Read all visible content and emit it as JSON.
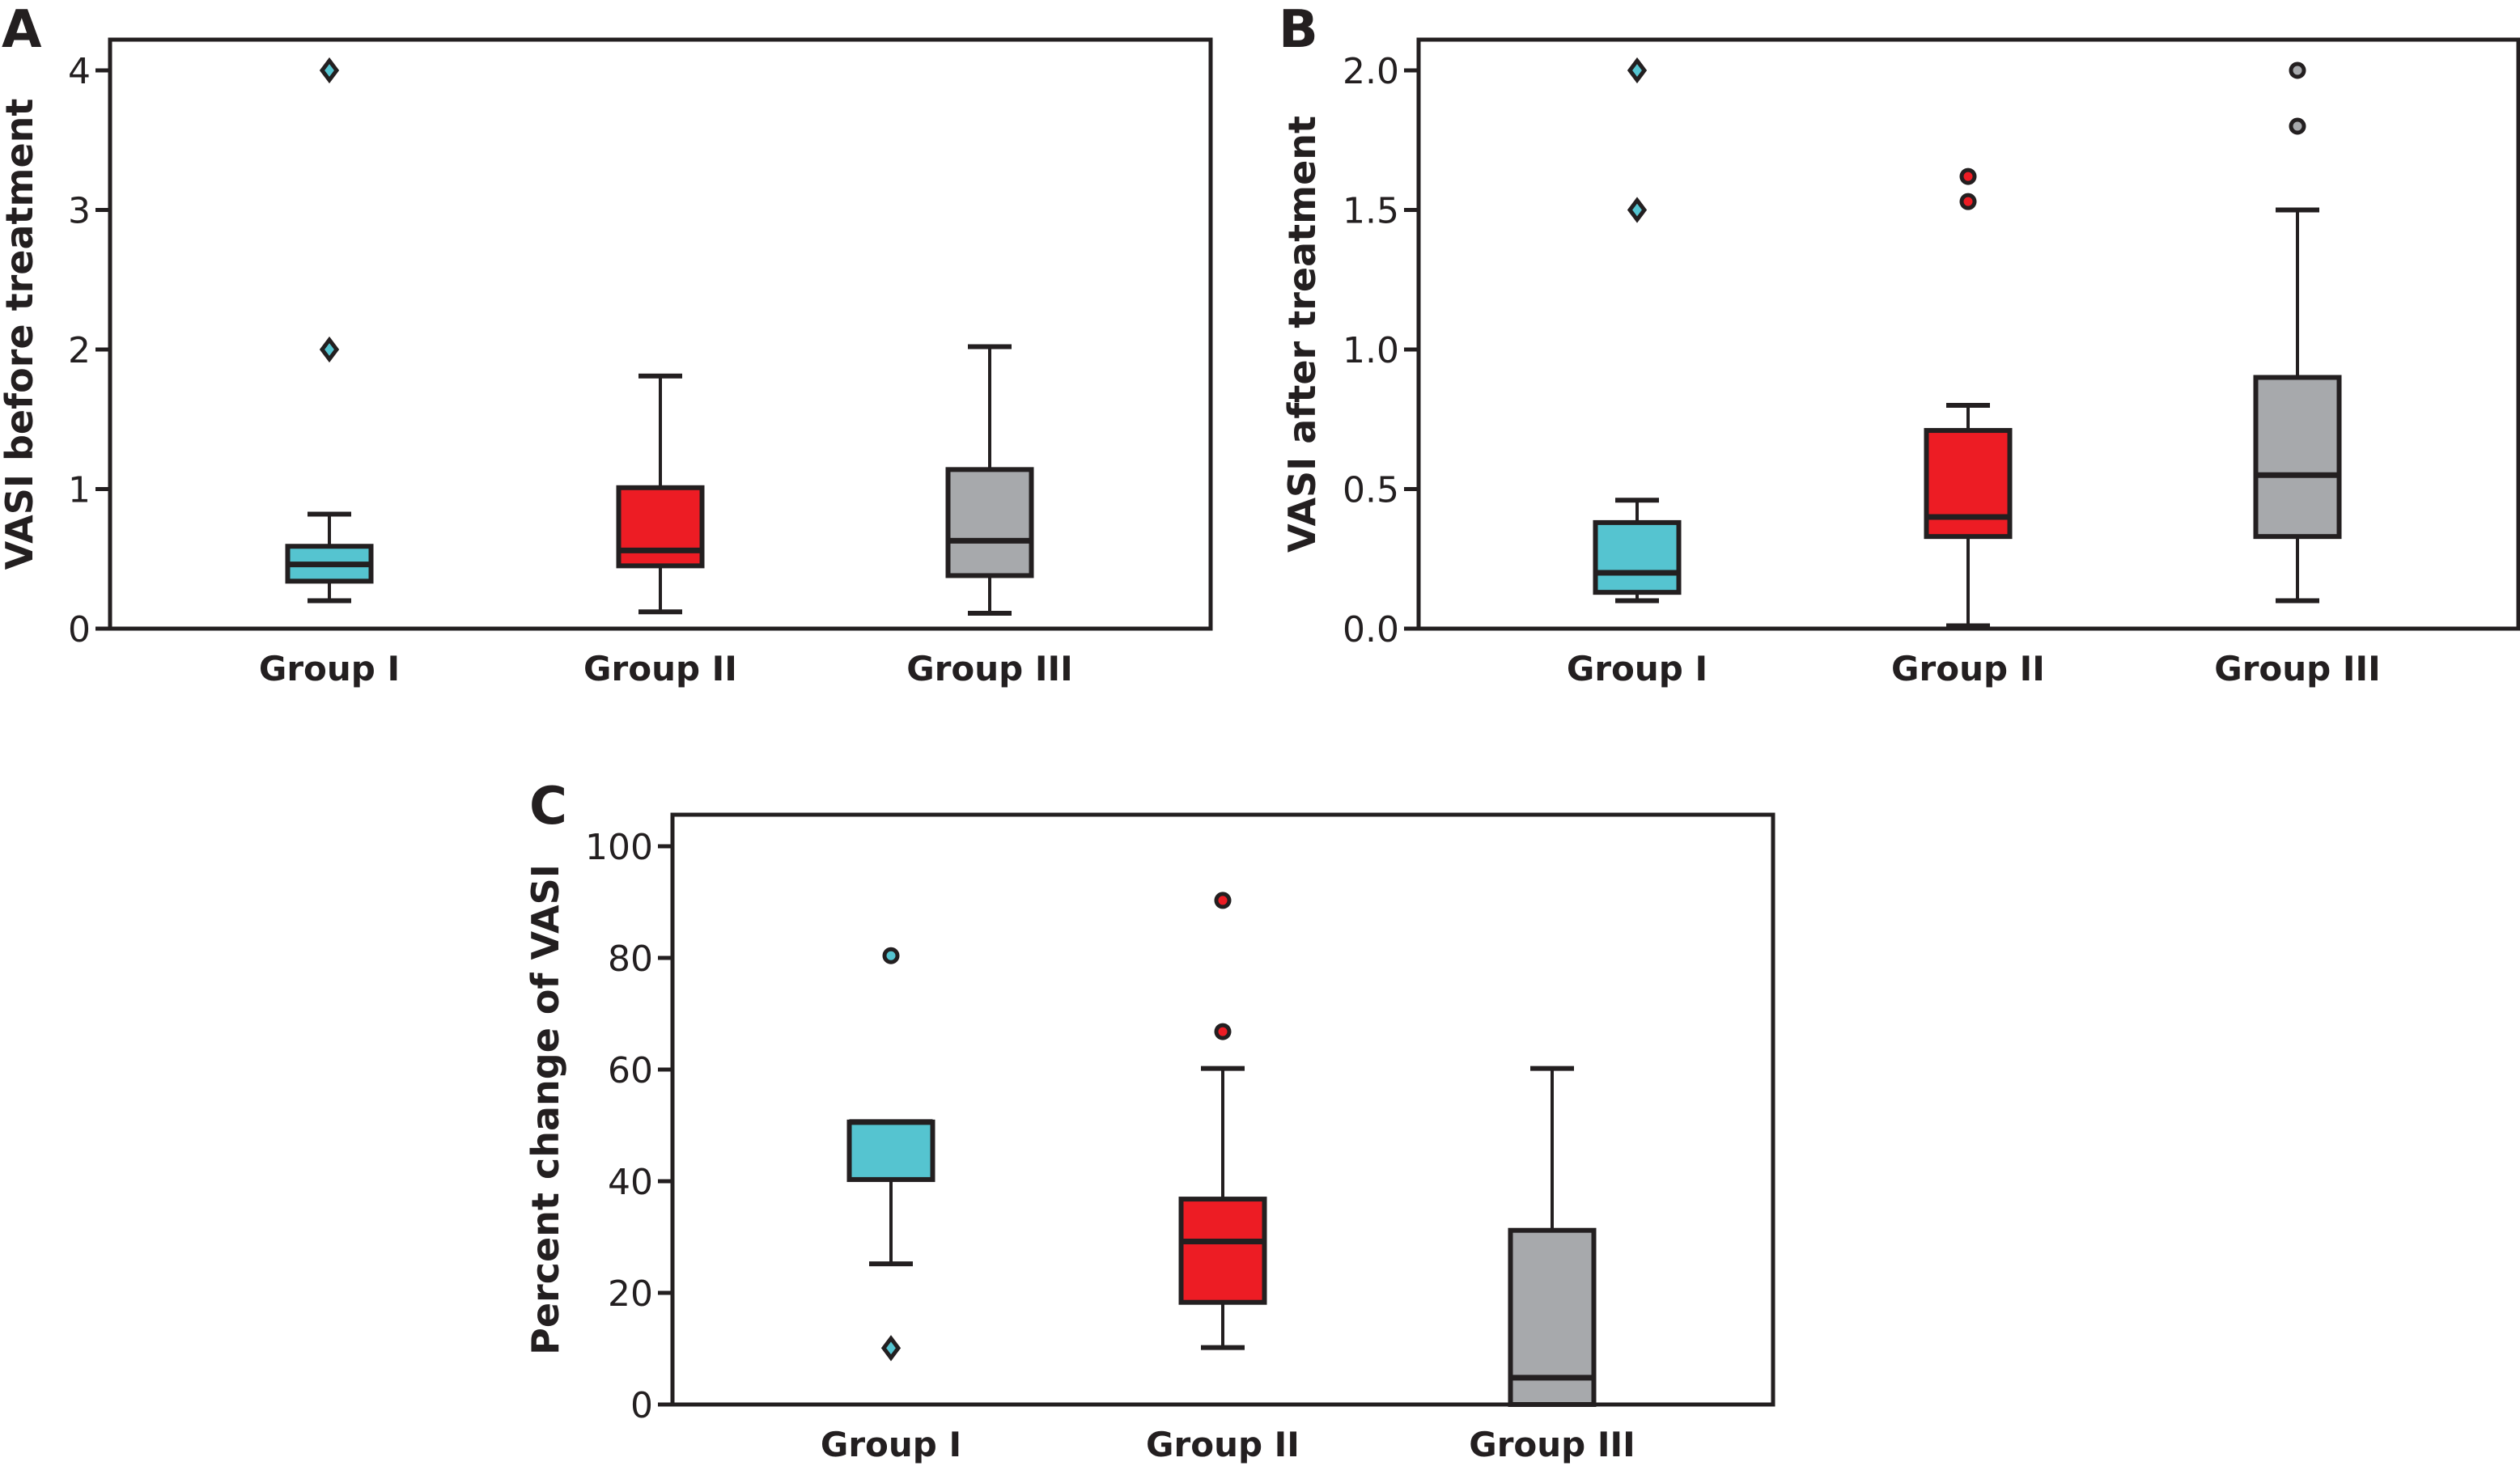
{
  "figure": {
    "colors": {
      "group_i": "#55c4d0",
      "group_ii": "#ed1c24",
      "group_iii": "#a7a9ac",
      "ink": "#231f20"
    }
  },
  "chart_data": [
    {
      "type": "box",
      "panel": "A",
      "title": "",
      "xlabel": "",
      "ylabel": "VASI before treatment",
      "ylim": [
        0,
        4.2
      ],
      "yticks": [
        0,
        1,
        2,
        3,
        4
      ],
      "ytick_labels": [
        "0",
        "1",
        "2",
        "3",
        "4"
      ],
      "categories": [
        "Group I",
        "Group II",
        "Group III"
      ],
      "grid": false,
      "series": [
        {
          "name": "Group I",
          "color": "#55c4d0",
          "whisker_low": 0.2,
          "q1": 0.34,
          "median": 0.46,
          "q3": 0.59,
          "whisker_high": 0.82,
          "outliers": [
            {
              "value": 2.0,
              "marker": "diamond"
            },
            {
              "value": 4.0,
              "marker": "diamond"
            }
          ]
        },
        {
          "name": "Group II",
          "color": "#ed1c24",
          "whisker_low": 0.12,
          "q1": 0.45,
          "median": 0.56,
          "q3": 1.01,
          "whisker_high": 1.81,
          "outliers": []
        },
        {
          "name": "Group III",
          "color": "#a7a9ac",
          "whisker_low": 0.11,
          "q1": 0.38,
          "median": 0.63,
          "q3": 1.14,
          "whisker_high": 2.02,
          "outliers": []
        }
      ]
    },
    {
      "type": "box",
      "panel": "B",
      "title": "",
      "xlabel": "",
      "ylabel": "VASI after treatment",
      "ylim": [
        0,
        2.1
      ],
      "yticks": [
        0,
        0.5,
        1.0,
        1.5,
        2.0
      ],
      "ytick_labels": [
        "0.0",
        "0.5",
        "1.0",
        "1.5",
        "2.0"
      ],
      "categories": [
        "Group I",
        "Group II",
        "Group III"
      ],
      "grid": false,
      "series": [
        {
          "name": "Group I",
          "color": "#55c4d0",
          "whisker_low": 0.1,
          "q1": 0.13,
          "median": 0.2,
          "q3": 0.38,
          "whisker_high": 0.46,
          "outliers": [
            {
              "value": 1.5,
              "marker": "diamond"
            },
            {
              "value": 2.0,
              "marker": "diamond"
            }
          ]
        },
        {
          "name": "Group II",
          "color": "#ed1c24",
          "whisker_low": 0.01,
          "q1": 0.33,
          "median": 0.4,
          "q3": 0.71,
          "whisker_high": 0.8,
          "outliers": [
            {
              "value": 1.53,
              "marker": "circle"
            },
            {
              "value": 1.62,
              "marker": "circle"
            }
          ]
        },
        {
          "name": "Group III",
          "color": "#a7a9ac",
          "whisker_low": 0.1,
          "q1": 0.33,
          "median": 0.55,
          "q3": 0.9,
          "whisker_high": 1.5,
          "outliers": [
            {
              "value": 1.8,
              "marker": "circle"
            },
            {
              "value": 2.0,
              "marker": "circle"
            }
          ]
        }
      ]
    },
    {
      "type": "box",
      "panel": "C",
      "title": "",
      "xlabel": "",
      "ylabel": "Percent change of VASI",
      "ylim": [
        0,
        105
      ],
      "yticks": [
        0,
        20,
        40,
        60,
        80,
        100
      ],
      "ytick_labels": [
        "0",
        "20",
        "40",
        "60",
        "80",
        "100"
      ],
      "categories": [
        "Group I",
        "Group II",
        "Group III"
      ],
      "grid": false,
      "series": [
        {
          "name": "Group I",
          "color": "#55c4d0",
          "whisker_low": 25.2,
          "q1": 40.3,
          "median": 50.6,
          "q3": 50.6,
          "whisker_high": 50.6,
          "outliers": [
            {
              "value": 80.4,
              "marker": "circle"
            },
            {
              "value": 10.1,
              "marker": "diamond"
            }
          ]
        },
        {
          "name": "Group II",
          "color": "#ed1c24",
          "whisker_low": 10.2,
          "q1": 18.3,
          "median": 29.2,
          "q3": 36.8,
          "whisker_high": 60.2,
          "outliers": [
            {
              "value": 66.8,
              "marker": "circle"
            },
            {
              "value": 90.3,
              "marker": "circle"
            }
          ]
        },
        {
          "name": "Group III",
          "color": "#a7a9ac",
          "whisker_low": 0,
          "q1": 0,
          "median": 4.8,
          "q3": 31.2,
          "whisker_high": 60.2,
          "outliers": []
        }
      ]
    }
  ]
}
